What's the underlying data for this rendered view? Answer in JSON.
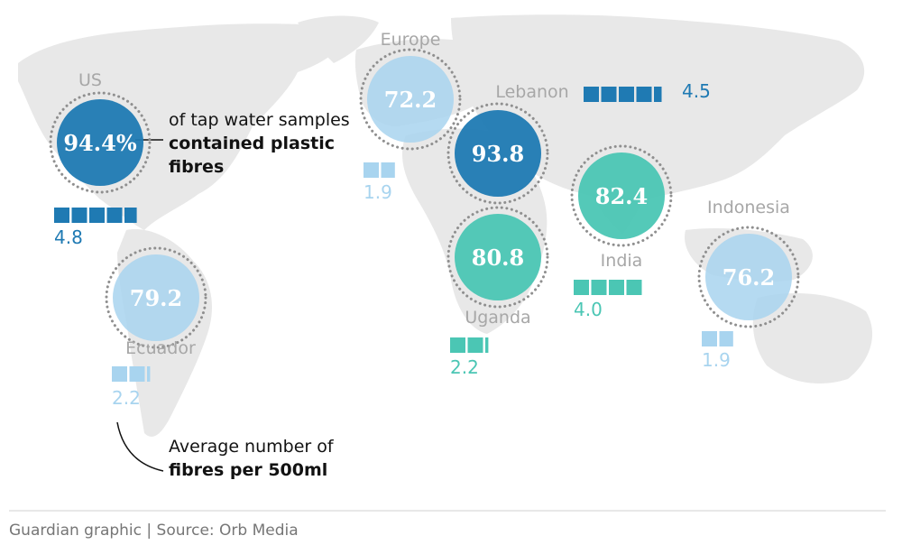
{
  "colors": {
    "very_high": "#1f7ab3",
    "high": "#1f7ab3",
    "mid_teal": "#4bc6b4",
    "light_blue": "#a8d4ef",
    "label_gray": "#a7a7a7"
  },
  "annotations": {
    "bubble_note_part1": "of tap water samples",
    "bubble_note_part2": "contained plastic fibres",
    "bar_note_part1": "Average number of",
    "bar_note_part2": "fibres per 500ml"
  },
  "footer": "Guardian graphic | Source: Orb Media",
  "map_data": {
    "unit_percent_label": "94.4%",
    "locations": [
      {
        "name": "US",
        "percent": "94.4%",
        "fibres": "4.8",
        "fibre_count": 4.8,
        "color_key": "very_high"
      },
      {
        "name": "Europe",
        "percent": "72.2",
        "fibres": "1.9",
        "fibre_count": 1.9,
        "color_key": "light_blue"
      },
      {
        "name": "Lebanon",
        "percent": "93.8",
        "fibres": "4.5",
        "fibre_count": 4.5,
        "color_key": "very_high"
      },
      {
        "name": "Uganda",
        "percent": "80.8",
        "fibres": "2.2",
        "fibre_count": 2.2,
        "color_key": "mid_teal"
      },
      {
        "name": "India",
        "percent": "82.4",
        "fibres": "4.0",
        "fibre_count": 4.0,
        "color_key": "mid_teal"
      },
      {
        "name": "Indonesia",
        "percent": "76.2",
        "fibres": "1.9",
        "fibre_count": 1.9,
        "color_key": "light_blue"
      },
      {
        "name": "Ecuador",
        "percent": "79.2",
        "fibres": "2.2",
        "fibre_count": 2.2,
        "color_key": "light_blue"
      }
    ]
  }
}
